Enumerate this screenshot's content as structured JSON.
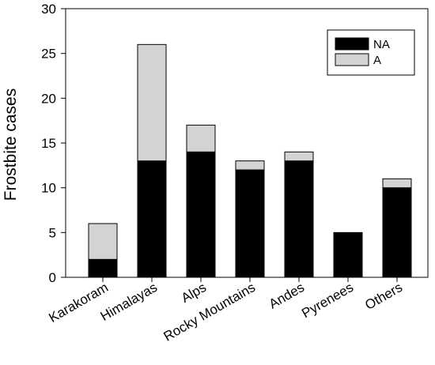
{
  "chart_data": {
    "type": "bar",
    "stacked": true,
    "categories": [
      "Karakoram",
      "Himalayas",
      "Alps",
      "Rocky Mountains",
      "Andes",
      "Pyrenees",
      "Others"
    ],
    "series": [
      {
        "name": "NA",
        "color": "#000000",
        "values": [
          2,
          13,
          14,
          12,
          13,
          5,
          10
        ]
      },
      {
        "name": "A",
        "color": "#d3d3d3",
        "values": [
          4,
          13,
          3,
          1,
          1,
          0,
          1
        ]
      }
    ],
    "title": "",
    "xlabel": "",
    "ylabel": "Frostbite cases",
    "ylim": [
      0,
      30
    ],
    "yticks": [
      0,
      5,
      10,
      15,
      20,
      25,
      30
    ],
    "grid": false,
    "legend_position": "top-right"
  }
}
